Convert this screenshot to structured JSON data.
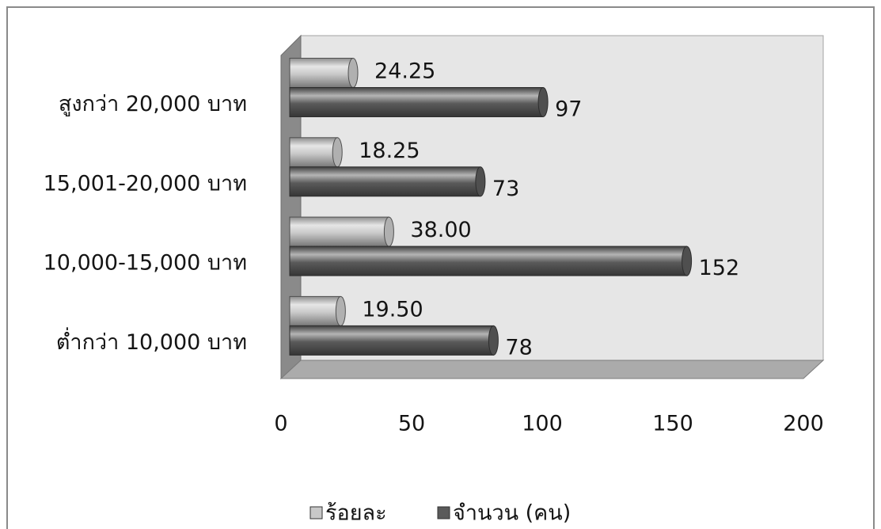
{
  "chart_data": {
    "type": "bar",
    "horizontal": true,
    "three_d": true,
    "grid": false,
    "legend_position": "bottom",
    "categories": [
      "สูงกว่า 20,000 บาท",
      "15,001-20,000 บาท",
      "10,000-15,000 บาท",
      "ต่ำกว่า 10,000 บาท"
    ],
    "series": [
      {
        "name": "ร้อยละ",
        "color": "#c8c8c8",
        "values": [
          24.25,
          18.25,
          38.0,
          19.5
        ],
        "labels": [
          "24.25",
          "18.25",
          "38.00",
          "19.50"
        ]
      },
      {
        "name": "จำนวน (คน)",
        "color": "#5a5a5a",
        "values": [
          97,
          73,
          152,
          78
        ],
        "labels": [
          "97",
          "73",
          "152",
          "78"
        ]
      }
    ],
    "xlim": [
      0,
      200
    ],
    "xticks": [
      0,
      50,
      100,
      150,
      200
    ]
  }
}
